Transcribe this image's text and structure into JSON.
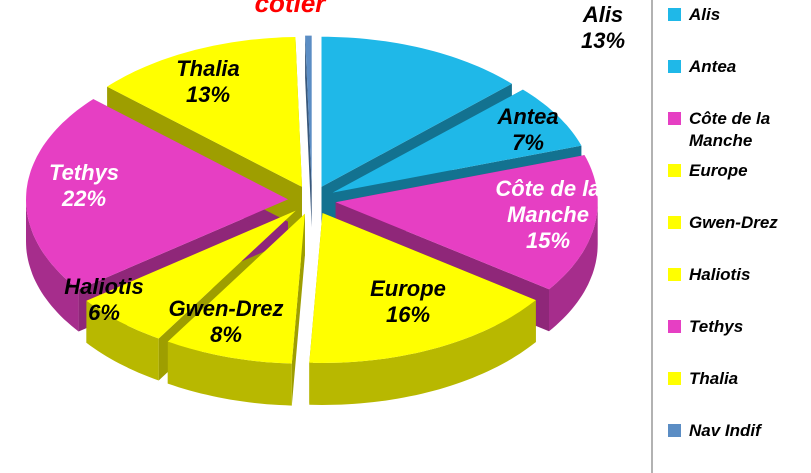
{
  "chart_data": {
    "type": "pie3d",
    "title": "côtier",
    "categories": [
      "Alis",
      "Antea",
      "Côte de la Manche",
      "Europe",
      "Gwen-Drez",
      "Haliotis",
      "Tethys",
      "Thalia",
      "Nav Indif"
    ],
    "values": [
      13,
      7,
      15,
      16,
      8,
      6,
      22,
      13,
      0.4
    ],
    "value_labels": [
      "13%",
      "7%",
      "15%",
      "16%",
      "8%",
      "6%",
      "22%",
      "13%",
      null
    ],
    "colors": [
      "#1fb8e8",
      "#1fb8e8",
      "#e63fc3",
      "#ffff00",
      "#ffff00",
      "#ffff00",
      "#e63fc3",
      "#ffff00",
      "#5b8dc4"
    ],
    "label_colors": [
      "#000000",
      "#000000",
      "#ffffff",
      "#000000",
      "#000000",
      "#000000",
      "#ffffff",
      "#000000",
      "#000000"
    ],
    "legend": "right"
  }
}
